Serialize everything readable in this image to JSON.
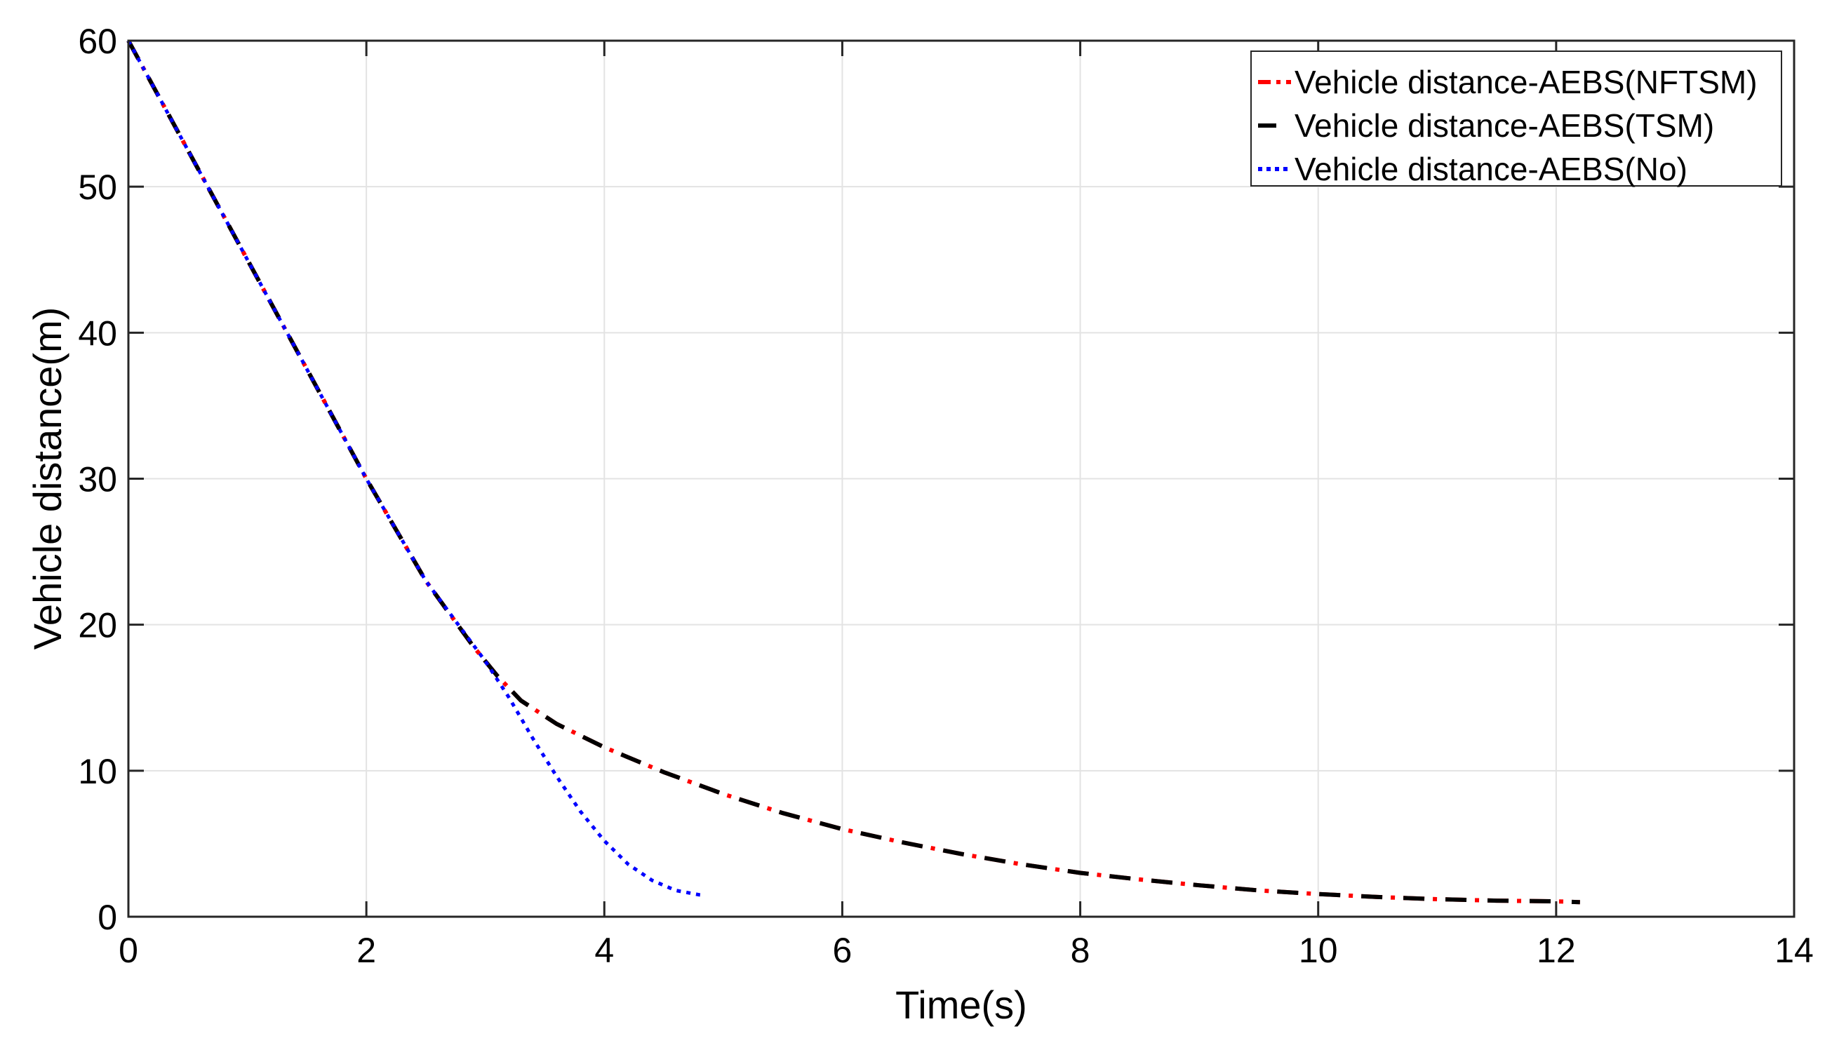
{
  "chart_data": {
    "type": "line",
    "title": "",
    "xlabel": "Time(s)",
    "ylabel": "Vehicle distance(m)",
    "xlim": [
      0,
      14
    ],
    "ylim": [
      0,
      60
    ],
    "xticks": [
      0,
      2,
      4,
      6,
      8,
      10,
      12,
      14
    ],
    "yticks": [
      0,
      10,
      20,
      30,
      40,
      50,
      60
    ],
    "grid": true,
    "legend_position": "top-right",
    "series": [
      {
        "name": "Vehicle distance-AEBS(NFTSM)",
        "color": "#ff0000",
        "style": "dashdot",
        "x": [
          0,
          0.5,
          1,
          1.5,
          2,
          2.5,
          2.9,
          3.1,
          3.3,
          3.6,
          4,
          4.5,
          5,
          5.5,
          6,
          6.5,
          7,
          7.5,
          8,
          8.5,
          9,
          9.5,
          10,
          10.5,
          11,
          11.5,
          12,
          12.2
        ],
        "y": [
          60,
          52.5,
          45,
          37.5,
          30,
          23,
          18.5,
          16.5,
          14.8,
          13.2,
          11.6,
          9.9,
          8.4,
          7.1,
          6.0,
          5.1,
          4.3,
          3.6,
          3.0,
          2.55,
          2.15,
          1.8,
          1.55,
          1.35,
          1.2,
          1.1,
          1.05,
          1.0
        ]
      },
      {
        "name": "Vehicle distance-AEBS(TSM)",
        "color": "#000000",
        "style": "dashed",
        "x": [
          0,
          0.5,
          1,
          1.5,
          2,
          2.5,
          2.9,
          3.1,
          3.3,
          3.6,
          4,
          4.5,
          5,
          5.5,
          6,
          6.5,
          7,
          7.5,
          8,
          8.5,
          9,
          9.5,
          10,
          10.5,
          11,
          11.5,
          12,
          12.2
        ],
        "y": [
          60,
          52.5,
          45,
          37.5,
          30,
          23,
          18.5,
          16.5,
          14.8,
          13.2,
          11.6,
          9.9,
          8.4,
          7.1,
          6.0,
          5.1,
          4.3,
          3.6,
          3.0,
          2.55,
          2.15,
          1.8,
          1.55,
          1.35,
          1.2,
          1.1,
          1.05,
          1.0
        ]
      },
      {
        "name": "Vehicle distance-AEBS(No)",
        "color": "#0000ff",
        "style": "dotted",
        "x": [
          0,
          0.5,
          1,
          1.5,
          2,
          2.5,
          3.0,
          3.2,
          3.4,
          3.6,
          3.8,
          4.0,
          4.2,
          4.4,
          4.6,
          4.8,
          4.85
        ],
        "y": [
          60,
          52.5,
          45,
          37.5,
          30,
          23,
          17.5,
          15.0,
          12.2,
          9.6,
          7.2,
          5.2,
          3.6,
          2.5,
          1.8,
          1.5,
          1.45
        ]
      }
    ]
  }
}
